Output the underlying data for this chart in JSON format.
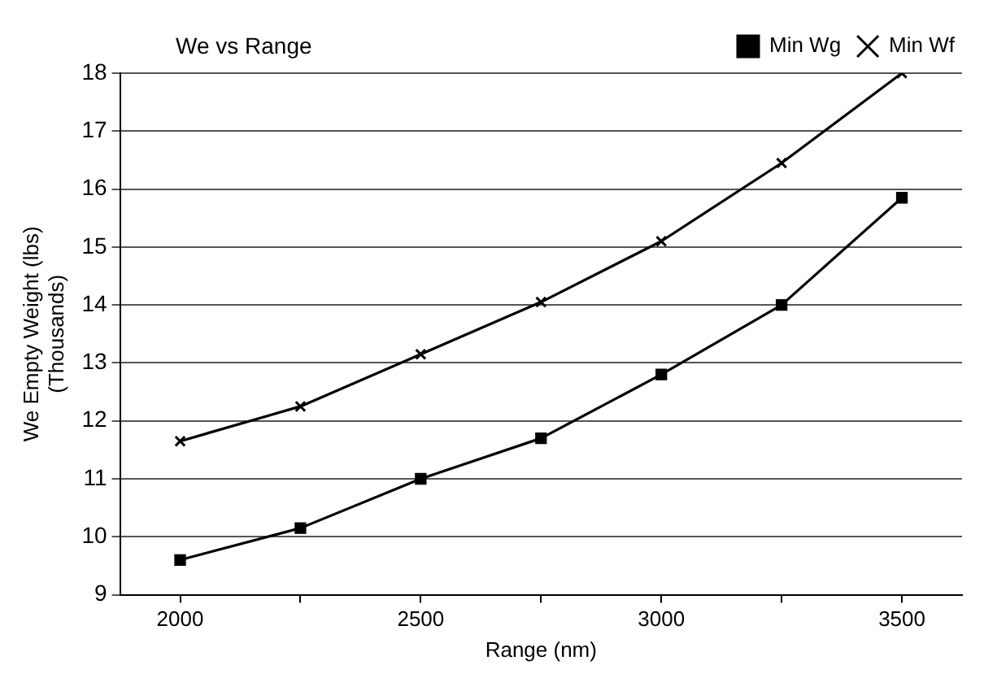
{
  "chart_data": {
    "type": "line",
    "title": "We vs Range",
    "xlabel": "Range (nm)",
    "ylabel": "We Empty Weight (lbs)\n(Thousands)",
    "x": [
      2000,
      2250,
      2500,
      2750,
      3000,
      3250,
      3500
    ],
    "series": [
      {
        "name": "Min Wg",
        "color": "#000000",
        "marker": "square",
        "values": [
          9.6,
          10.15,
          11.0,
          11.7,
          12.8,
          14.0,
          15.85
        ]
      },
      {
        "name": "Min Wf",
        "color": "#000000",
        "marker": "cross",
        "values": [
          11.65,
          12.25,
          13.15,
          14.05,
          15.1,
          16.45,
          18.0
        ]
      }
    ],
    "xlim": [
      1875,
      3625
    ],
    "xticks": [
      2000,
      {
        "value": 2250,
        "label": null
      },
      2500,
      {
        "value": 2750,
        "label": null
      },
      3000,
      {
        "value": 3250,
        "label": null
      },
      3500
    ],
    "ylim": [
      9,
      18
    ],
    "yticks": [
      9,
      10,
      11,
      12,
      13,
      14,
      15,
      16,
      17,
      18
    ],
    "grid": "y",
    "legend": "top right",
    "line_style": "solid"
  }
}
